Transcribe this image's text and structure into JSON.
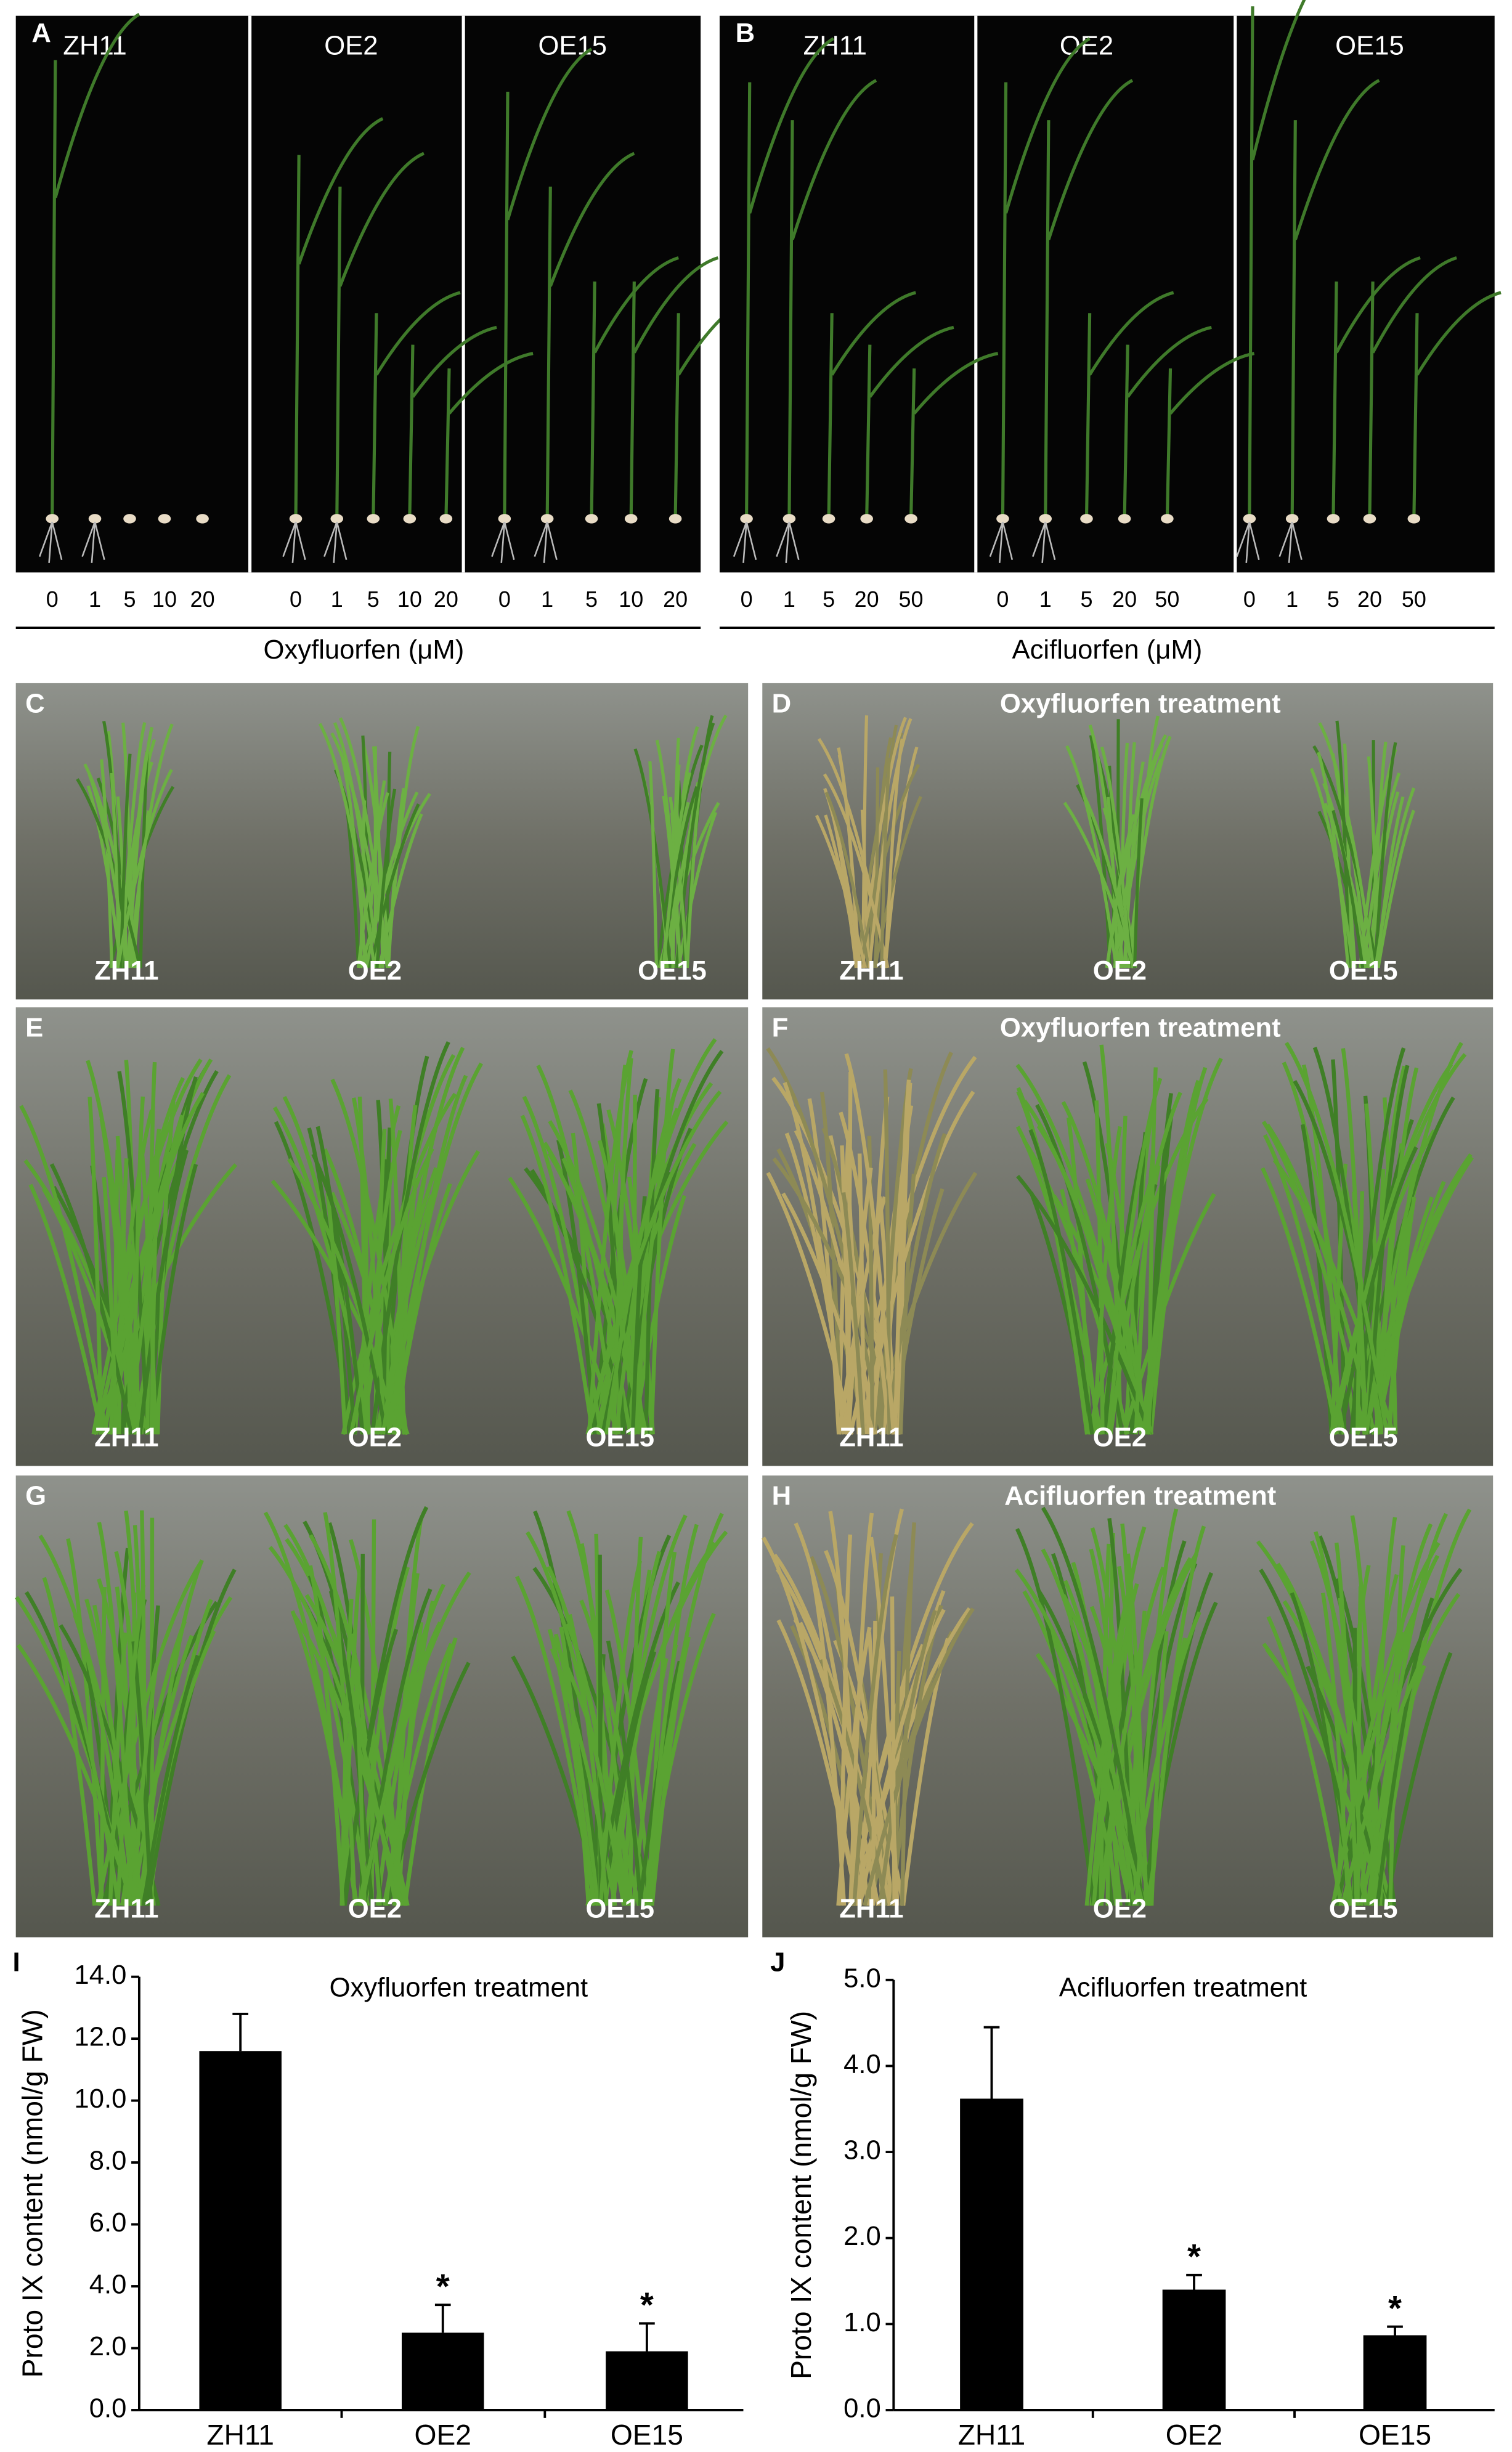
{
  "seedlings": [
    {
      "letter": "A",
      "lines": [
        "ZH11",
        "OE2",
        "OE15"
      ],
      "doses": [
        [
          0,
          1,
          5,
          10,
          20
        ],
        [
          0,
          1,
          5,
          10,
          20
        ],
        [
          0,
          1,
          5,
          10,
          20
        ]
      ],
      "axis_label": "Oxyfluorfen (μM)"
    },
    {
      "letter": "B",
      "lines": [
        "ZH11",
        "OE2",
        "OE15"
      ],
      "doses": [
        [
          0,
          1,
          5,
          20,
          50
        ],
        [
          0,
          1,
          5,
          20,
          50
        ],
        [
          0,
          1,
          5,
          20,
          50
        ]
      ],
      "axis_label": "Acifluorfen (μM)"
    }
  ],
  "photos": [
    {
      "letter": "C",
      "labels": [
        "ZH11",
        "OE2",
        "OE15"
      ]
    },
    {
      "letter": "D",
      "title": "Oxyfluorfen treatment",
      "labels": [
        "ZH11",
        "OE2",
        "OE15"
      ]
    },
    {
      "letter": "E",
      "labels": [
        "ZH11",
        "OE2",
        "OE15"
      ]
    },
    {
      "letter": "F",
      "title": "Oxyfluorfen treatment",
      "labels": [
        "ZH11",
        "OE2",
        "OE15"
      ]
    },
    {
      "letter": "G",
      "labels": [
        "ZH11",
        "OE2",
        "OE15"
      ]
    },
    {
      "letter": "H",
      "title": "Acifluorfen treatment",
      "labels": [
        "ZH11",
        "OE2",
        "OE15"
      ]
    }
  ],
  "chart_data": [
    {
      "type": "bar",
      "panel": "I",
      "title": "Oxyfluorfen treatment",
      "y_label": "Proto IX content (nmol/g FW)",
      "categories": [
        "ZH11",
        "OE2",
        "OE15"
      ],
      "values": [
        11.6,
        2.5,
        1.9
      ],
      "errors": [
        1.2,
        0.9,
        0.9
      ],
      "markers": [
        null,
        "*",
        "*"
      ],
      "color": "#000000",
      "ylim": [
        0,
        14
      ],
      "yticks": [
        {
          "value": 0,
          "label": "0.0"
        },
        {
          "value": 2,
          "label": "2.0"
        },
        {
          "value": 4,
          "label": "4.0"
        },
        {
          "value": 6,
          "label": "6.0"
        },
        {
          "value": 8,
          "label": "8.0"
        },
        {
          "value": 10,
          "label": "10.0"
        },
        {
          "value": 12,
          "label": "12.0"
        },
        {
          "value": 14,
          "label": "14.0"
        }
      ]
    },
    {
      "type": "bar",
      "panel": "J",
      "title": "Acifluorfen treatment",
      "y_label": "Proto IX content (nmol/g FW)",
      "categories": [
        "ZH11",
        "OE2",
        "OE15"
      ],
      "values": [
        3.62,
        1.4,
        0.87
      ],
      "errors": [
        0.83,
        0.17,
        0.1
      ],
      "markers": [
        null,
        "*",
        "*"
      ],
      "color": "#000000",
      "ylim": [
        0,
        5
      ],
      "yticks": [
        {
          "value": 0,
          "label": "0.0"
        },
        {
          "value": 1,
          "label": "1.0"
        },
        {
          "value": 2,
          "label": "2.0"
        },
        {
          "value": 3,
          "label": "3.0"
        },
        {
          "value": 4,
          "label": "4.0"
        },
        {
          "value": 5,
          "label": "5.0"
        }
      ]
    }
  ]
}
